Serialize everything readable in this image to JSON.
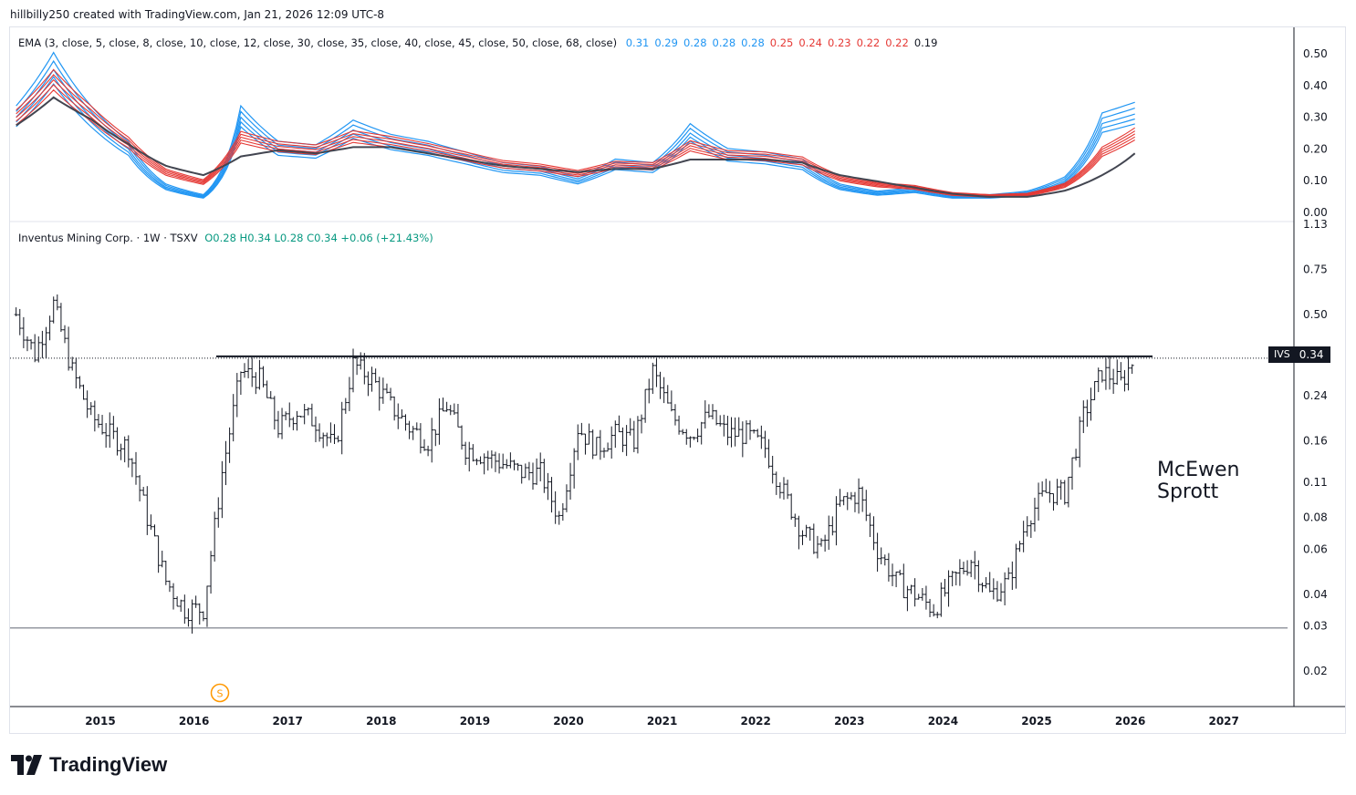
{
  "header": {
    "text": "hillbilly250 created with TradingView.com, Jan 21, 2026 12:09 UTC-8"
  },
  "ema_panel": {
    "label": "EMA (3, close, 5, close, 8, close, 10, close, 12, close, 30, close, 35, close, 40, close, 45, close, 50, close, 68, close)",
    "values": [
      {
        "text": "0.31",
        "color": "#2196f3"
      },
      {
        "text": "0.29",
        "color": "#2196f3"
      },
      {
        "text": "0.28",
        "color": "#2196f3"
      },
      {
        "text": "0.28",
        "color": "#2196f3"
      },
      {
        "text": "0.28",
        "color": "#2196f3"
      },
      {
        "text": "0.25",
        "color": "#e53935"
      },
      {
        "text": "0.24",
        "color": "#e53935"
      },
      {
        "text": "0.23",
        "color": "#e53935"
      },
      {
        "text": "0.22",
        "color": "#e53935"
      },
      {
        "text": "0.22",
        "color": "#e53935"
      },
      {
        "text": "0.19",
        "color": "#131722"
      }
    ],
    "yticks": [
      "0.50",
      "0.40",
      "0.30",
      "0.20",
      "0.10",
      "0.00"
    ]
  },
  "price_panel": {
    "title": "Inventus Mining Corp. · 1W · TSXV",
    "ohlc": "O0.28  H0.34  L0.28  C0.34  +0.06 (+21.43%)",
    "yticks": [
      "1.13",
      "0.75",
      "0.50",
      "0.24",
      "0.16",
      "0.11",
      "0.08",
      "0.06",
      "0.04",
      "0.03",
      "0.02"
    ],
    "symbol": "IVS",
    "last_price": "0.34",
    "annotation_line1": "McEwen",
    "annotation_line2": "Sprott",
    "split_marker": "S"
  },
  "xaxis": {
    "ticks": [
      "2015",
      "2016",
      "2017",
      "2018",
      "2019",
      "2020",
      "2021",
      "2022",
      "2023",
      "2024",
      "2025",
      "2026",
      "2027"
    ]
  },
  "brand": {
    "text": "TradingView"
  },
  "chart_data": {
    "type": "bar",
    "title": "Inventus Mining Corp. · 1W · TSXV",
    "scale": "log",
    "resistance_level": 0.34,
    "support_level": 0.03,
    "series": [
      {
        "name": "Price (approx. weekly closes)",
        "x": [
          2014.1,
          2014.3,
          2014.5,
          2014.7,
          2014.9,
          2015.1,
          2015.3,
          2015.5,
          2015.7,
          2015.9,
          2016.1,
          2016.3,
          2016.5,
          2016.7,
          2016.9,
          2017.1,
          2017.3,
          2017.5,
          2017.7,
          2017.9,
          2018.1,
          2018.3,
          2018.5,
          2018.7,
          2018.9,
          2019.1,
          2019.3,
          2019.5,
          2019.7,
          2019.9,
          2020.1,
          2020.3,
          2020.5,
          2020.7,
          2020.9,
          2021.1,
          2021.3,
          2021.5,
          2021.7,
          2021.9,
          2022.1,
          2022.3,
          2022.5,
          2022.7,
          2022.9,
          2023.1,
          2023.3,
          2023.5,
          2023.7,
          2023.9,
          2024.1,
          2024.3,
          2024.5,
          2024.7,
          2024.9,
          2025.1,
          2025.3,
          2025.5,
          2025.7,
          2025.9,
          2026.05
        ],
        "values": [
          0.5,
          0.35,
          0.55,
          0.3,
          0.2,
          0.17,
          0.15,
          0.08,
          0.045,
          0.035,
          0.035,
          0.12,
          0.3,
          0.28,
          0.18,
          0.21,
          0.19,
          0.15,
          0.32,
          0.28,
          0.22,
          0.18,
          0.16,
          0.22,
          0.15,
          0.14,
          0.13,
          0.12,
          0.12,
          0.08,
          0.18,
          0.15,
          0.17,
          0.16,
          0.3,
          0.2,
          0.17,
          0.2,
          0.17,
          0.17,
          0.15,
          0.1,
          0.07,
          0.06,
          0.09,
          0.1,
          0.06,
          0.045,
          0.04,
          0.035,
          0.045,
          0.055,
          0.04,
          0.045,
          0.08,
          0.1,
          0.1,
          0.2,
          0.3,
          0.27,
          0.34
        ]
      }
    ],
    "ema_panel": {
      "ylim": [
        0,
        0.5
      ],
      "x": [
        2014.1,
        2014.5,
        2014.9,
        2015.3,
        2015.7,
        2016.1,
        2016.5,
        2016.9,
        2017.3,
        2017.7,
        2018.1,
        2018.5,
        2018.9,
        2019.3,
        2019.7,
        2020.1,
        2020.5,
        2020.9,
        2021.3,
        2021.7,
        2022.1,
        2022.5,
        2022.9,
        2023.3,
        2023.7,
        2024.1,
        2024.5,
        2024.9,
        2025.3,
        2025.7,
        2026.05
      ],
      "fast": [
        0.3,
        0.45,
        0.3,
        0.2,
        0.08,
        0.05,
        0.3,
        0.2,
        0.19,
        0.26,
        0.22,
        0.2,
        0.17,
        0.14,
        0.13,
        0.1,
        0.15,
        0.14,
        0.25,
        0.18,
        0.17,
        0.15,
        0.08,
        0.06,
        0.07,
        0.05,
        0.05,
        0.06,
        0.1,
        0.28,
        0.31
      ],
      "slow": [
        0.28,
        0.37,
        0.3,
        0.22,
        0.15,
        0.12,
        0.18,
        0.2,
        0.19,
        0.21,
        0.21,
        0.19,
        0.17,
        0.15,
        0.14,
        0.13,
        0.14,
        0.14,
        0.17,
        0.17,
        0.17,
        0.16,
        0.12,
        0.1,
        0.08,
        0.06,
        0.05,
        0.05,
        0.07,
        0.12,
        0.19
      ]
    }
  }
}
